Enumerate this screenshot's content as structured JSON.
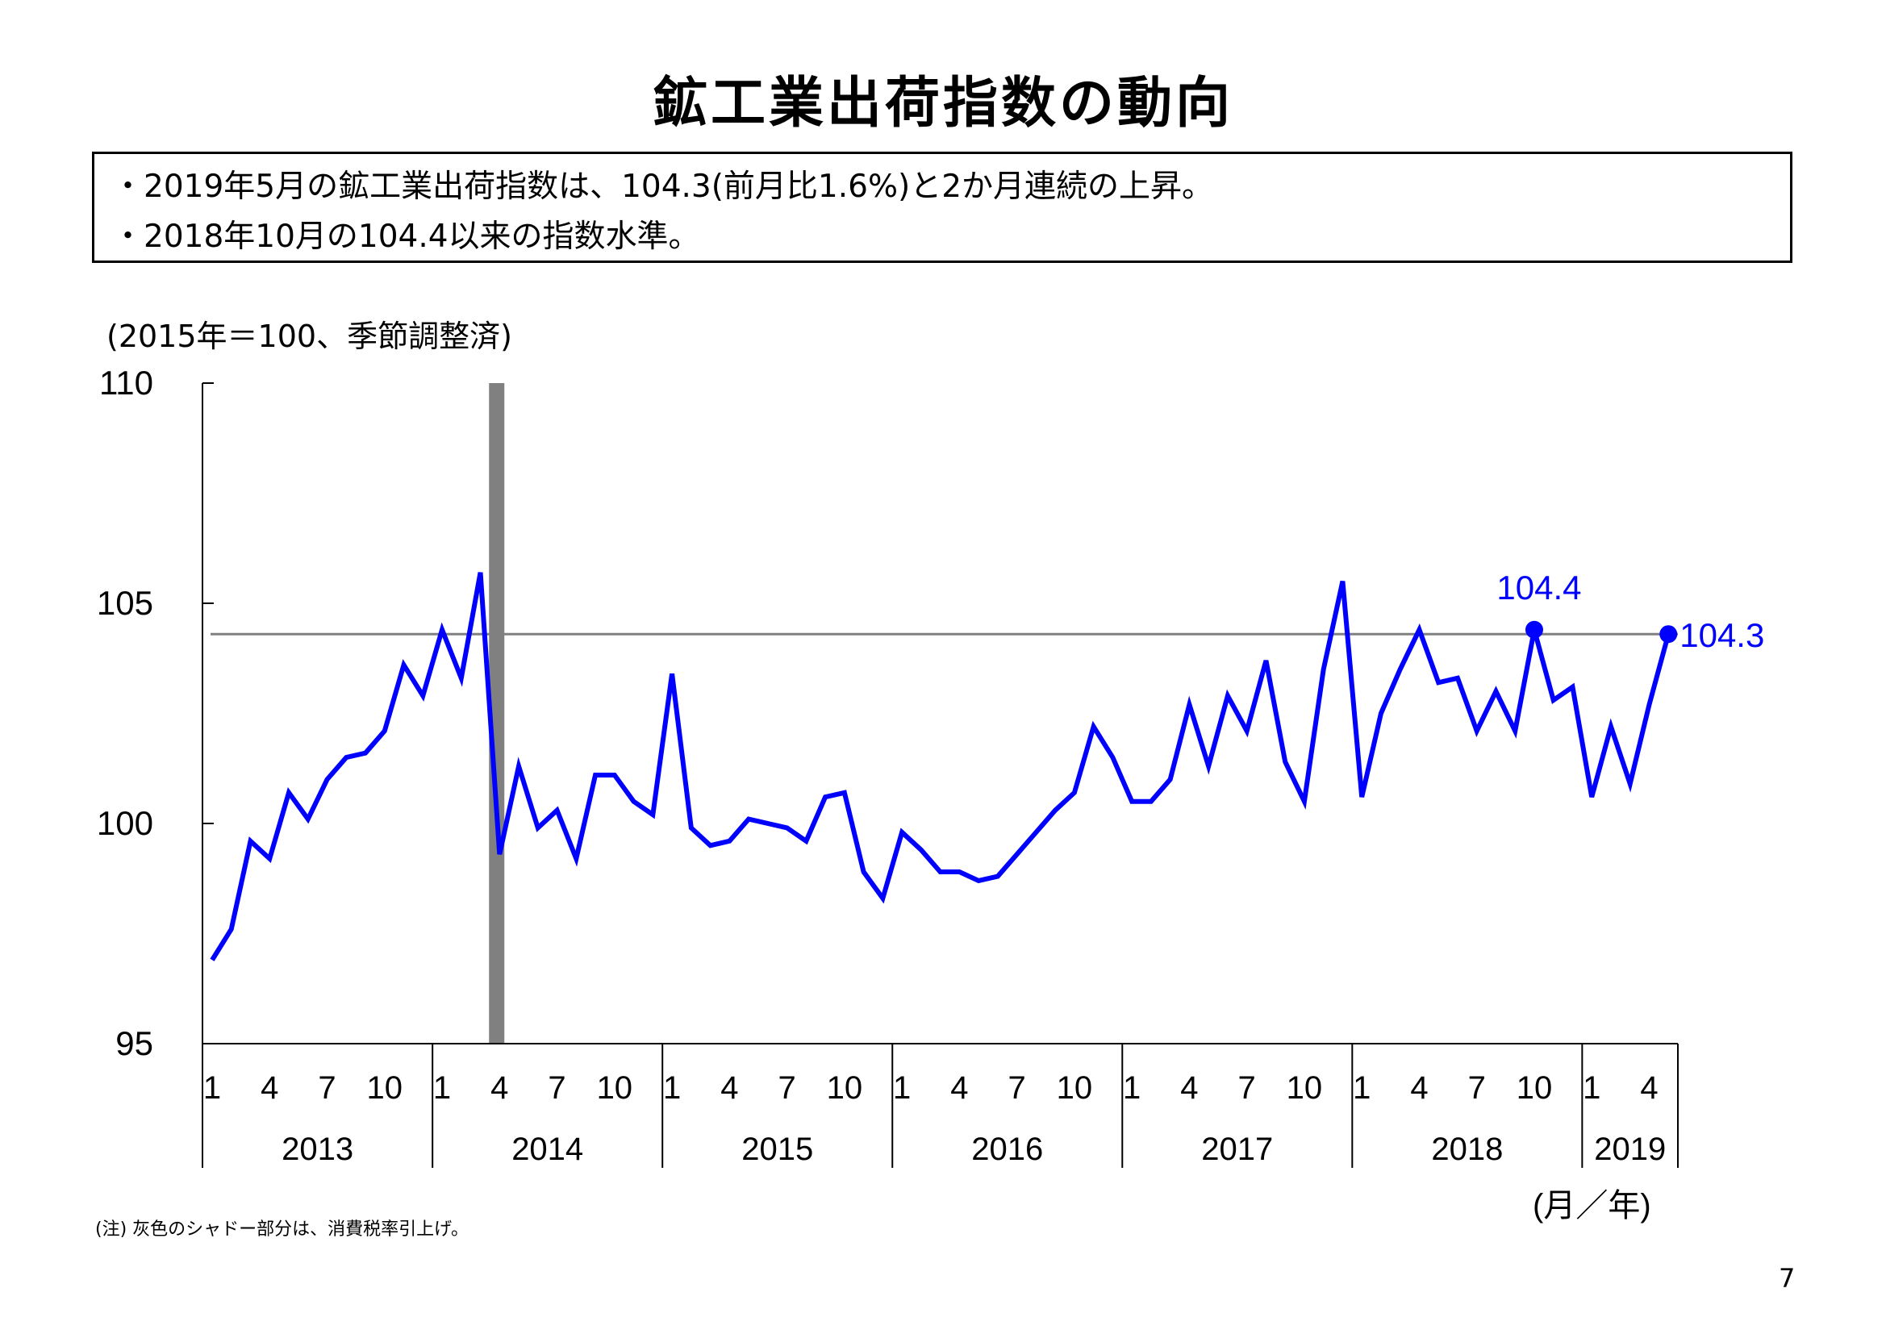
{
  "page": {
    "title": "鉱工業出荷指数の動向",
    "summary": [
      "・2019年5月の鉱工業出荷指数は、104.3(前月比1.6%)と2か月連続の上昇。",
      "・2018年10月の104.4以来の指数水準。"
    ],
    "unit_note": "(2015年＝100、季節調整済)",
    "axis_unit_label": "(月／年)",
    "footnote": "(注) 灰色のシャドー部分は、消費税率引上げ。",
    "page_number": "7"
  },
  "colors": {
    "series": "#0000ff",
    "reference_line": "#808080",
    "shade": "#808080",
    "axis": "#000000"
  },
  "chart_data": {
    "type": "line",
    "ylim": [
      95,
      110
    ],
    "yticks": [
      95,
      100,
      105,
      110
    ],
    "month_tick_labels": [
      "1",
      "4",
      "7",
      "10"
    ],
    "years": [
      "2013",
      "2014",
      "2015",
      "2016",
      "2017",
      "2018",
      "2019"
    ],
    "x_start": "2013-01",
    "x_end": "2019-05",
    "grid": false,
    "legend": "none",
    "reference_line": {
      "value": 104.3
    },
    "shaded_period": {
      "from": "2014-03",
      "to": "2014-04"
    },
    "annotations": [
      {
        "x": "2018-10",
        "y": 104.4,
        "label": "104.4"
      },
      {
        "x": "2019-05",
        "y": 104.3,
        "label": "104.3"
      }
    ],
    "series": [
      {
        "values": [
          96.9,
          97.6,
          99.6,
          99.2,
          100.7,
          100.1,
          101.0,
          101.5,
          101.6,
          102.1,
          103.6,
          102.9,
          104.4,
          103.3,
          105.7,
          99.3,
          101.3,
          99.9,
          100.3,
          99.2,
          101.1,
          101.1,
          100.5,
          100.2,
          103.4,
          99.9,
          99.5,
          99.6,
          100.1,
          100.0,
          99.9,
          99.6,
          100.6,
          100.7,
          98.9,
          98.3,
          99.8,
          99.4,
          98.9,
          98.9,
          98.7,
          98.8,
          99.3,
          99.8,
          100.3,
          100.7,
          102.2,
          101.5,
          100.5,
          100.5,
          101.0,
          102.7,
          101.3,
          102.9,
          102.1,
          103.7,
          101.4,
          100.5,
          103.5,
          105.5,
          100.6,
          102.5,
          103.5,
          104.4,
          103.2,
          103.3,
          102.1,
          103.0,
          102.1,
          104.4,
          102.8,
          103.1,
          100.6,
          102.2,
          100.9,
          102.7,
          104.3
        ]
      }
    ]
  }
}
